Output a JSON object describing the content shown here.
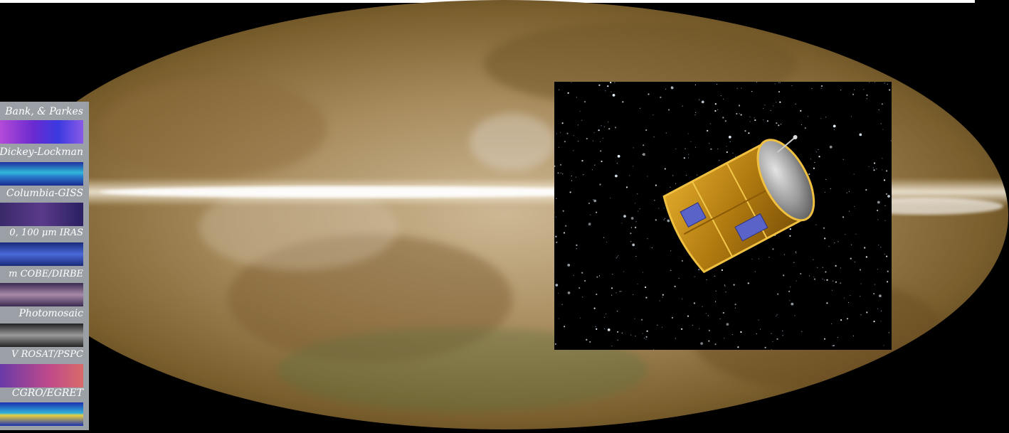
{
  "survey_panel": {
    "labels": [
      "Bank, & Parkes",
      "Dickey-Lockman",
      "Columbia-GISS",
      "0, 100 μm   IRAS",
      "m   COBE/DIRBE",
      "Photomosaic",
      "V   ROSAT/PSPC",
      "CGRO/EGRET"
    ]
  },
  "colors": {
    "background": "#000000",
    "panel": "#9aa0a6",
    "sky_center": "#d8c8a8",
    "sky_edge": "#8a6a2a",
    "spacecraft_gold": "#c8921c",
    "solar_panel": "#5a64c8"
  },
  "icons": [
    "milky-way-allsky-map",
    "spacecraft-illustration",
    "starfield"
  ]
}
